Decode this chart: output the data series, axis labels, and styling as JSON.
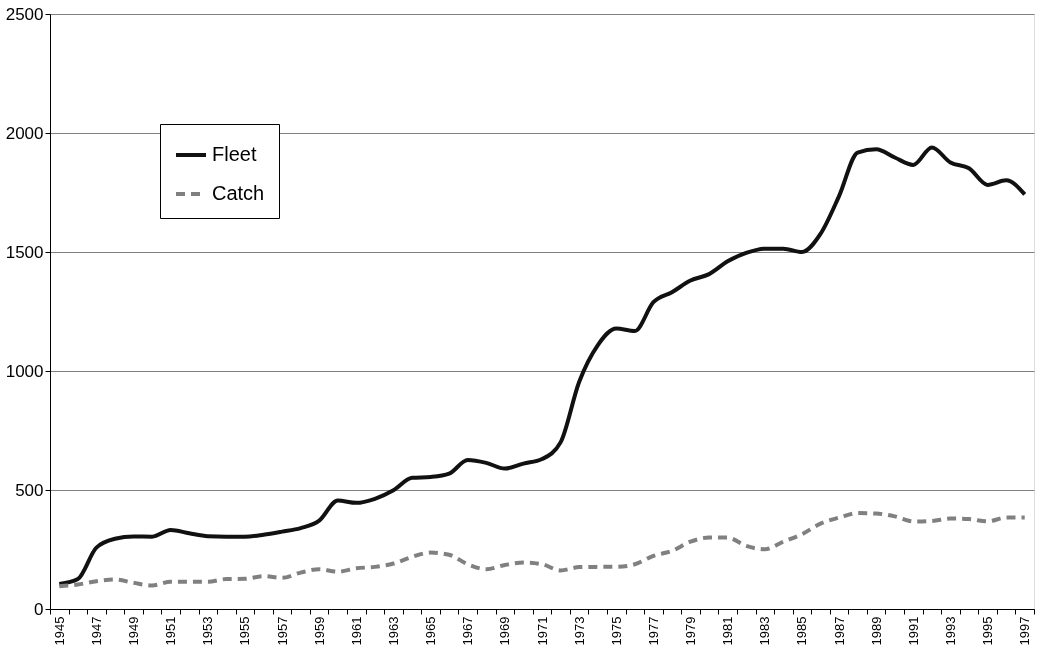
{
  "chart_data": {
    "type": "line",
    "categories": [
      "1945",
      null,
      "1947",
      null,
      "1949",
      null,
      "1951",
      null,
      "1953",
      null,
      "1955",
      null,
      "1957",
      null,
      "1959",
      null,
      "1961",
      null,
      "1963",
      null,
      "1965",
      null,
      "1967",
      null,
      "1969",
      null,
      "1971",
      null,
      "1973",
      null,
      "1975",
      null,
      "1977",
      null,
      "1979",
      null,
      "1981",
      null,
      "1983",
      null,
      "1985",
      null,
      "1987",
      null,
      "1989",
      null,
      "1991",
      null,
      "1993",
      null,
      "1995",
      null,
      "1997"
    ],
    "series": [
      {
        "name": "Fleet",
        "color": "#111111",
        "line_style": "solid",
        "values": [
          105,
          126,
          258,
          295,
          305,
          304,
          332,
          318,
          306,
          304,
          304,
          312,
          325,
          340,
          371,
          456,
          446,
          463,
          499,
          551,
          555,
          569,
          626,
          614,
          590,
          611,
          630,
          700,
          954,
          1108,
          1179,
          1168,
          1289,
          1331,
          1380,
          1407,
          1461,
          1496,
          1514,
          1514,
          1500,
          1576,
          1735,
          1918,
          1932,
          1897,
          1866,
          1939,
          1876,
          1852,
          1782,
          1801,
          1742
        ]
      },
      {
        "name": "Catch",
        "color": "#808080",
        "line_style": "dashed",
        "values": [
          96,
          103,
          117,
          124,
          110,
          99,
          114,
          114,
          114,
          126,
          127,
          138,
          131,
          153,
          167,
          157,
          171,
          177,
          191,
          219,
          237,
          228,
          188,
          167,
          185,
          195,
          188,
          162,
          176,
          177,
          177,
          188,
          223,
          244,
          283,
          300,
          300,
          265,
          251,
          283,
          314,
          359,
          384,
          403,
          401,
          389,
          368,
          370,
          380,
          378,
          368,
          384,
          384
        ]
      }
    ],
    "ylim": [
      0,
      2500
    ],
    "yticks": [
      0,
      500,
      1000,
      1500,
      2000,
      2500
    ],
    "grid": "y",
    "legend": "top left"
  }
}
